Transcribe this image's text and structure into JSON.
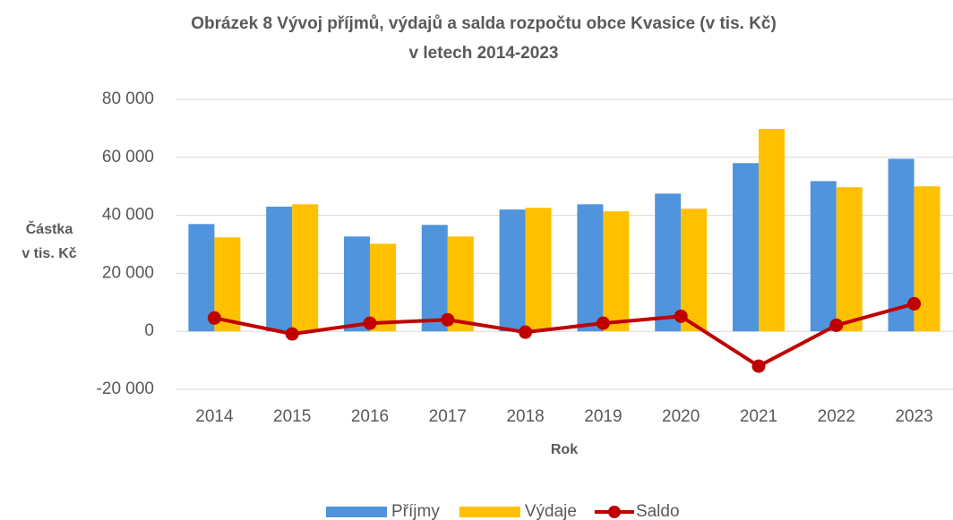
{
  "chart_data": {
    "type": "bar",
    "title": [
      "Obrázek 8 Vývoj příjmů, výdajů a salda rozpočtu obce Kvasice (v tis. Kč)",
      "v letech 2014-2023"
    ],
    "y_label": [
      "Částka",
      "v tis. Kč"
    ],
    "x_label": "Rok",
    "categories": [
      "2014",
      "2015",
      "2016",
      "2017",
      "2018",
      "2019",
      "2020",
      "2021",
      "2022",
      "2023"
    ],
    "series": [
      {
        "name": "Příjmy",
        "type": "bar",
        "color": "#4f94dc",
        "values": [
          37000,
          43000,
          32700,
          36700,
          42000,
          43800,
          47500,
          58000,
          51800,
          59500
        ]
      },
      {
        "name": "Výdaje",
        "type": "bar",
        "color": "#ffc000",
        "values": [
          32400,
          43800,
          30200,
          32700,
          42600,
          41400,
          42300,
          69800,
          49700,
          50000
        ]
      },
      {
        "name": "Saldo",
        "type": "line",
        "color": "#c00000",
        "values": [
          4600,
          -900,
          2800,
          4000,
          -300,
          2800,
          5200,
          -12000,
          2100,
          9500
        ]
      }
    ],
    "ylim": [
      -20000,
      80000
    ],
    "yticks": [
      {
        "value": -20000,
        "label": "-20 000"
      },
      0,
      {
        "value": 20000,
        "label": "20 000"
      },
      {
        "value": 40000,
        "label": "40 000"
      },
      {
        "value": 60000,
        "label": "60 000"
      },
      {
        "value": 80000,
        "label": "80 000"
      }
    ],
    "grid": true,
    "legend": "bottom"
  }
}
